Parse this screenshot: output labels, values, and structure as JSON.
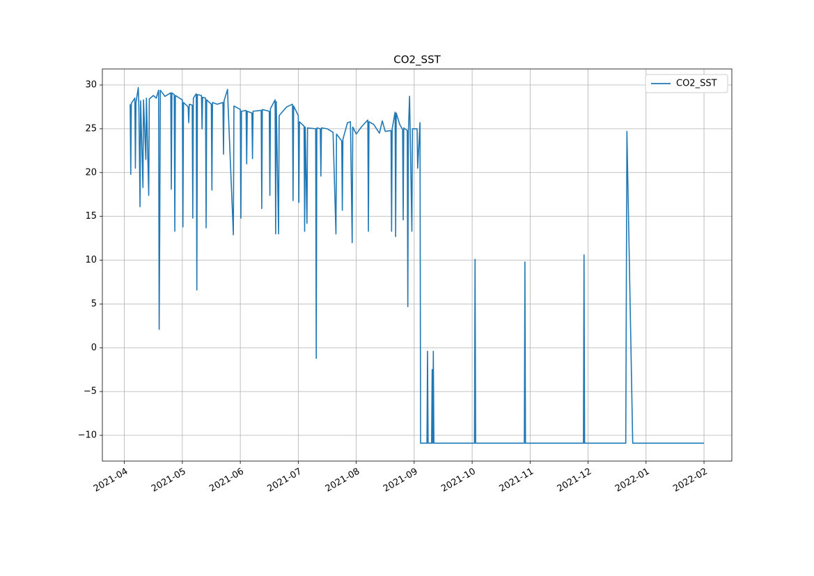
{
  "chart_data": {
    "type": "line",
    "title": "CO2_SST",
    "x": [
      0.1,
      0.11,
      0.12,
      0.18,
      0.19,
      0.2,
      0.24,
      0.25,
      0.27,
      0.28,
      0.32,
      0.33,
      0.37,
      0.38,
      0.42,
      0.43,
      0.5,
      0.55,
      0.59,
      0.6,
      0.61,
      0.62,
      0.7,
      0.8,
      0.81,
      0.82,
      0.86,
      0.87,
      0.88,
      1.0,
      1.01,
      1.02,
      1.1,
      1.11,
      1.12,
      1.17,
      1.18,
      1.19,
      1.24,
      1.25,
      1.26,
      1.33,
      1.34,
      1.35,
      1.4,
      1.41,
      1.42,
      1.5,
      1.51,
      1.52,
      1.6,
      1.7,
      1.71,
      1.72,
      1.78,
      1.79,
      1.88,
      1.89,
      2.0,
      2.01,
      2.02,
      2.1,
      2.11,
      2.12,
      2.2,
      2.21,
      2.22,
      2.36,
      2.37,
      2.38,
      2.5,
      2.51,
      2.52,
      2.6,
      2.61,
      2.62,
      2.66,
      2.67,
      2.8,
      2.9,
      2.91,
      2.92,
      3.0,
      3.01,
      3.02,
      3.1,
      3.11,
      3.12,
      3.15,
      3.16,
      3.3,
      3.31,
      3.32,
      3.38,
      3.39,
      3.4,
      3.5,
      3.6,
      3.65,
      3.66,
      3.75,
      3.76,
      3.77,
      3.85,
      3.9,
      3.93,
      3.94,
      4.0,
      4.1,
      4.2,
      4.21,
      4.22,
      4.3,
      4.4,
      4.45,
      4.5,
      4.6,
      4.61,
      4.62,
      4.67,
      4.68,
      4.69,
      4.75,
      4.8,
      4.81,
      4.82,
      4.88,
      4.89,
      4.9,
      4.92,
      4.93,
      4.96,
      4.97,
      5.05,
      5.06,
      5.1,
      5.11,
      5.22,
      5.23,
      5.24,
      5.3,
      5.31,
      5.32,
      5.33,
      5.34,
      6.04,
      6.05,
      6.06,
      6.9,
      6.91,
      6.92,
      7.92,
      7.93,
      7.94,
      8.65,
      8.67,
      8.77,
      10.0
    ],
    "series": [
      {
        "name": "CO2_SST",
        "color": "#1f77b4",
        "values": [
          27.8,
          19.8,
          27.9,
          28.5,
          20.5,
          28.0,
          29.7,
          27.5,
          16.1,
          28.2,
          18.3,
          28.3,
          21.5,
          28.5,
          17.4,
          28.4,
          28.8,
          28.5,
          29.4,
          2.1,
          13.7,
          29.4,
          28.7,
          29.1,
          18.1,
          29.1,
          28.9,
          13.3,
          28.8,
          28.3,
          13.8,
          28.0,
          27.5,
          25.7,
          27.8,
          27.7,
          14.8,
          28.5,
          29.0,
          6.6,
          28.9,
          28.8,
          25.0,
          28.6,
          28.5,
          13.7,
          28.3,
          27.8,
          18.0,
          28.0,
          27.8,
          28.0,
          22.1,
          28.2,
          29.5,
          27.5,
          12.9,
          27.6,
          27.2,
          14.8,
          27.0,
          27.1,
          21.0,
          27.0,
          26.8,
          21.6,
          27.0,
          27.1,
          15.9,
          27.2,
          27.0,
          17.4,
          27.3,
          28.3,
          13.0,
          28.1,
          13.0,
          26.5,
          27.5,
          27.8,
          16.8,
          27.6,
          26.5,
          16.6,
          25.8,
          25.3,
          13.3,
          25.2,
          14.2,
          25.1,
          25.0,
          -1.2,
          25.1,
          25.0,
          19.6,
          25.1,
          25.0,
          24.6,
          13.0,
          24.4,
          23.6,
          15.7,
          23.8,
          25.7,
          25.8,
          12.0,
          25.2,
          24.4,
          25.3,
          26.0,
          13.3,
          25.8,
          25.5,
          24.5,
          25.9,
          24.7,
          24.8,
          13.3,
          25.0,
          26.9,
          12.7,
          26.8,
          25.5,
          24.9,
          14.6,
          25.1,
          24.8,
          4.7,
          24.8,
          28.7,
          24.9,
          13.3,
          25.0,
          25.0,
          20.5,
          25.7,
          -10.9,
          -10.9,
          -0.4,
          -10.9,
          -10.9,
          -2.5,
          -10.9,
          -0.4,
          -10.9,
          -10.9,
          10.1,
          -10.9,
          -10.9,
          9.8,
          -10.9,
          -10.9,
          10.6,
          -10.9,
          -10.9,
          24.7,
          -10.9,
          -10.9
        ]
      }
    ],
    "xlim": [
      -0.38,
      10.48
    ],
    "xticks": [
      {
        "value": 0,
        "label": "2021-04"
      },
      {
        "value": 1,
        "label": "2021-05"
      },
      {
        "value": 2,
        "label": "2021-06"
      },
      {
        "value": 3,
        "label": "2021-07"
      },
      {
        "value": 4,
        "label": "2021-08"
      },
      {
        "value": 5,
        "label": "2021-09"
      },
      {
        "value": 6,
        "label": "2021-10"
      },
      {
        "value": 7,
        "label": "2021-11"
      },
      {
        "value": 8,
        "label": "2021-12"
      },
      {
        "value": 9,
        "label": "2022-01"
      },
      {
        "value": 10,
        "label": "2022-02"
      }
    ],
    "ylim": [
      -12.94,
      31.83
    ],
    "yticks": [
      {
        "value": -10,
        "label": "−10"
      },
      {
        "value": -5,
        "label": "−5"
      },
      0,
      5,
      10,
      15,
      20,
      25,
      30
    ],
    "grid": true,
    "legend": "upper right"
  }
}
